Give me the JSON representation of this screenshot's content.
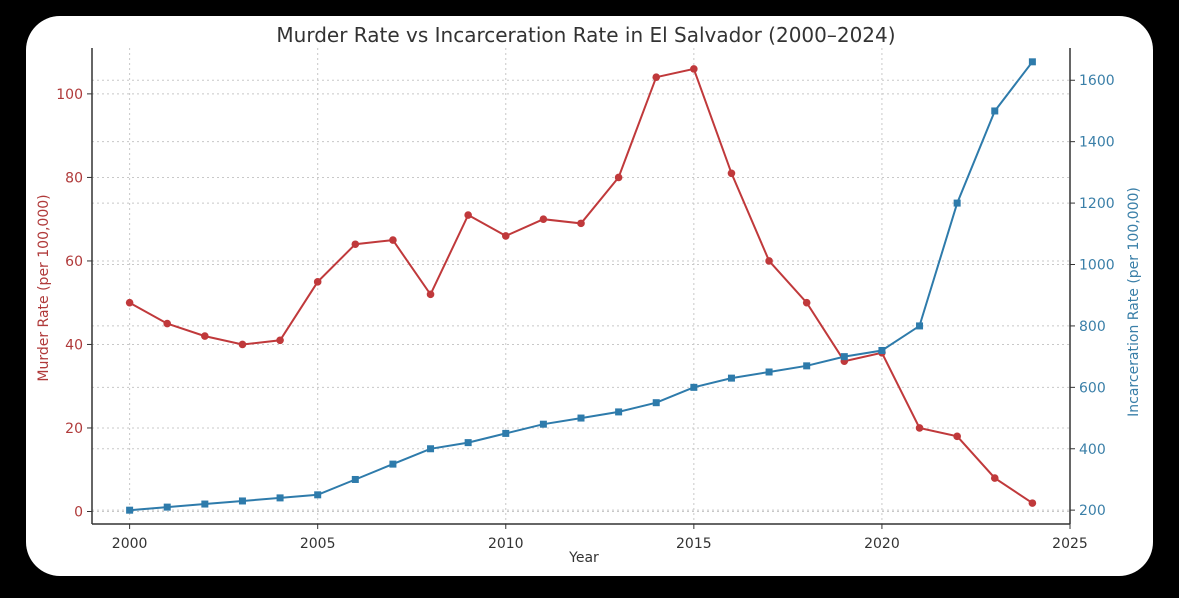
{
  "chart_data": {
    "type": "line",
    "title": "Murder Rate vs Incarceration Rate in El Salvador (2000–2024)",
    "xlabel": "Year",
    "ylabel_left": "Murder Rate (per 100,000)",
    "ylabel_right": "Incarceration Rate (per 100,000)",
    "xlim": [
      1999,
      2025
    ],
    "ylim_left": [
      -3,
      111
    ],
    "ylim_right": [
      155,
      1705
    ],
    "x_ticks": [
      2000,
      2005,
      2010,
      2015,
      2020,
      2025
    ],
    "x_tick_labels": [
      "2000",
      "2005",
      "2010",
      "2015",
      "2020",
      "2025"
    ],
    "y_left_ticks": [
      0,
      20,
      40,
      60,
      80,
      100
    ],
    "y_left_tick_labels": [
      "0",
      "20",
      "40",
      "60",
      "80",
      "100"
    ],
    "y_right_ticks": [
      200,
      400,
      600,
      800,
      1000,
      1200,
      1400,
      1600
    ],
    "y_right_tick_labels": [
      "200",
      "400",
      "600",
      "800",
      "1000",
      "1200",
      "1400",
      "1600"
    ],
    "grid": true,
    "x": [
      2000,
      2001,
      2002,
      2003,
      2004,
      2005,
      2006,
      2007,
      2008,
      2009,
      2010,
      2011,
      2012,
      2013,
      2014,
      2015,
      2016,
      2017,
      2018,
      2019,
      2020,
      2021,
      2022,
      2023,
      2024
    ],
    "series": [
      {
        "name": "Murder Rate",
        "axis": "left",
        "color": "#c0393b",
        "marker": "circle",
        "values": [
          50,
          45,
          42,
          40,
          41,
          55,
          64,
          65,
          52,
          71,
          66,
          70,
          69,
          80,
          104,
          106,
          81,
          60,
          50,
          36,
          38,
          20,
          18,
          8,
          2
        ]
      },
      {
        "name": "Incarceration Rate",
        "axis": "right",
        "color": "#2e7bab",
        "marker": "square",
        "values": [
          200,
          210,
          220,
          230,
          240,
          250,
          300,
          350,
          400,
          420,
          450,
          480,
          500,
          520,
          550,
          600,
          630,
          650,
          670,
          700,
          720,
          800,
          1200,
          1500,
          1660
        ]
      }
    ]
  }
}
